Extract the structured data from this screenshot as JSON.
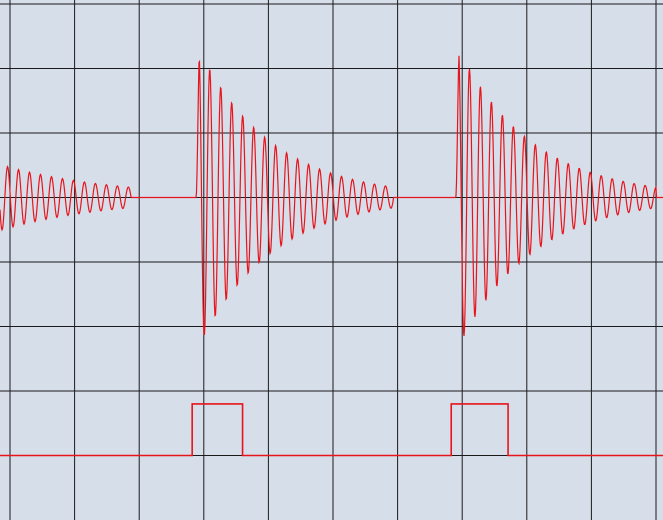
{
  "chart_data": {
    "type": "line",
    "title": "",
    "xlabel": "",
    "ylabel": "",
    "grid": true,
    "grid_divisions": {
      "x": 10,
      "y": 8
    },
    "xlim": [
      0,
      10
    ],
    "ylim": [
      0,
      8
    ],
    "colors": {
      "background": "#d6deea",
      "grid": "#1a1a1a",
      "trace": "#e8141b"
    },
    "series": [
      {
        "kind": "damped-oscillation",
        "baseline_div": 5.0,
        "bursts": [
          {
            "start_div": -2.8,
            "end_div": 1.88,
            "amplitude_div": 2.35,
            "period_div": 0.17
          },
          {
            "start_div": 2.88,
            "end_div": 5.93,
            "amplitude_div": 2.4,
            "period_div": 0.17
          },
          {
            "start_div": 6.9,
            "end_div": 10.0,
            "amplitude_div": 2.4,
            "period_div": 0.17
          }
        ]
      },
      {
        "kind": "pulse",
        "low_div": 1.0,
        "high_div": 1.8,
        "pulses": [
          {
            "rise_div": 2.82,
            "fall_div": 3.6
          },
          {
            "rise_div": 6.83,
            "fall_div": 7.71
          }
        ]
      }
    ]
  }
}
